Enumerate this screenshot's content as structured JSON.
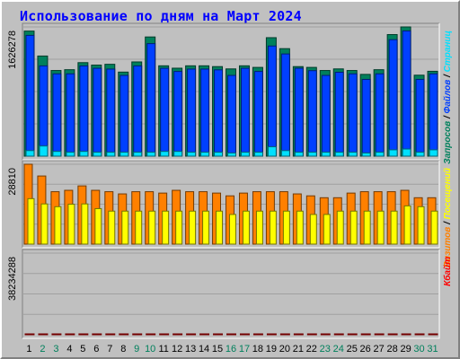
{
  "colors": {
    "hits": "#00805c",
    "files": "#0040ff",
    "pages": "#00e0ff",
    "visits": "#ff8000",
    "sites": "#ffff00",
    "kbytes": "#ff0000",
    "title": "#0000ff",
    "weekday_label": "#000000",
    "weekend_label": "#00805c",
    "separator": "#000000"
  },
  "chart_data": {
    "type": "bar",
    "title": "Использование по дням на Март 2024",
    "categories": [
      "1",
      "2",
      "3",
      "4",
      "5",
      "6",
      "7",
      "8",
      "9",
      "10",
      "11",
      "12",
      "13",
      "14",
      "15",
      "16",
      "17",
      "18",
      "19",
      "20",
      "21",
      "22",
      "23",
      "24",
      "25",
      "26",
      "27",
      "28",
      "29",
      "30",
      "31"
    ],
    "weekend_days": [
      "2",
      "3",
      "9",
      "10",
      "16",
      "17",
      "23",
      "24",
      "30",
      "31"
    ],
    "panels": [
      {
        "key": "top",
        "max_label": "1626278",
        "max_value": 1626278,
        "legend": [
          {
            "text": "Запросов",
            "color": "#00805c"
          },
          {
            "text": " / ",
            "color": "#000000"
          },
          {
            "text": "Файлов",
            "color": "#0040ff"
          },
          {
            "text": " / ",
            "color": "#000000"
          },
          {
            "text": "Страниц",
            "color": "#00e0ff"
          }
        ],
        "series": [
          {
            "name": "Запросов",
            "values": [
              1574000,
              1260000,
              1078000,
              1088000,
              1177000,
              1146000,
              1156000,
              1058000,
              1186000,
              1500000,
              1137000,
              1107000,
              1137000,
              1137000,
              1127000,
              1098000,
              1137000,
              1117000,
              1491000,
              1353000,
              1127000,
              1117000,
              1078000,
              1098000,
              1078000,
              1029000,
              1088000,
              1530000,
              1626278,
              1019000,
              1068000
            ]
          },
          {
            "name": "Файлов",
            "values": [
              1520000,
              1136000,
              1036000,
              1036000,
              1136000,
              1106000,
              1096000,
              1016000,
              1136000,
              1416000,
              1106000,
              1066000,
              1096000,
              1096000,
              1086000,
              1016000,
              1106000,
              1066000,
              1386000,
              1286000,
              1106000,
              1076000,
              1016000,
              1056000,
              1036000,
              966000,
              1036000,
              1466000,
              1576000,
              966000,
              1036000
            ]
          },
          {
            "name": "Страниц",
            "values": [
              70000,
              128000,
              60000,
              50000,
              60000,
              50000,
              50000,
              50000,
              50000,
              50000,
              60000,
              60000,
              50000,
              50000,
              50000,
              40000,
              50000,
              50000,
              118000,
              70000,
              50000,
              50000,
              50000,
              50000,
              50000,
              40000,
              50000,
              80000,
              90000,
              50000,
              80000
            ]
          }
        ]
      },
      {
        "key": "middle",
        "max_label": "28810",
        "max_value": 28810,
        "legend": [
          {
            "text": "Визитов",
            "color": "#ff8000"
          },
          {
            "text": " / ",
            "color": "#000000"
          },
          {
            "text": "Посещений",
            "color": "#ffff00"
          }
        ],
        "series": [
          {
            "name": "Визитов",
            "values": [
              28810,
              24570,
              18910,
              19410,
              21000,
              19410,
              18910,
              18110,
              18910,
              18910,
              18410,
              19410,
              18910,
              18910,
              18410,
              17410,
              18410,
              18910,
              18910,
              18910,
              18110,
              17410,
              16730,
              16730,
              18410,
              18910,
              18910,
              18910,
              19410,
              16730,
              16730
            ]
          },
          {
            "name": "Посещений",
            "values": [
              16400,
              14500,
              13500,
              14400,
              14500,
              12800,
              11900,
              11900,
              11900,
              11900,
              11900,
              11900,
              11900,
              11900,
              11900,
              10700,
              11900,
              11900,
              11900,
              11900,
              11900,
              10700,
              10700,
              11900,
              11900,
              11900,
              11900,
              11900,
              13800,
              13500,
              11900
            ]
          }
        ]
      },
      {
        "key": "bottom",
        "max_label": "38234288",
        "max_value": 38234288,
        "legend": [
          {
            "text": "Кбайт",
            "color": "#ff0000"
          }
        ],
        "series": [
          {
            "name": "Кбайт",
            "values": [
              26600,
              21700,
              19600,
              21000,
              20300,
              19600,
              21000,
              18900,
              23100,
              29400,
              21000,
              20300,
              20300,
              20300,
              19600,
              20300,
              21700,
              21000,
              29400,
              23100,
              21000,
              21700,
              20300,
              20300,
              20300,
              18900,
              21000,
              30100,
              38234,
              18900,
              21700
            ]
          }
        ]
      }
    ]
  }
}
